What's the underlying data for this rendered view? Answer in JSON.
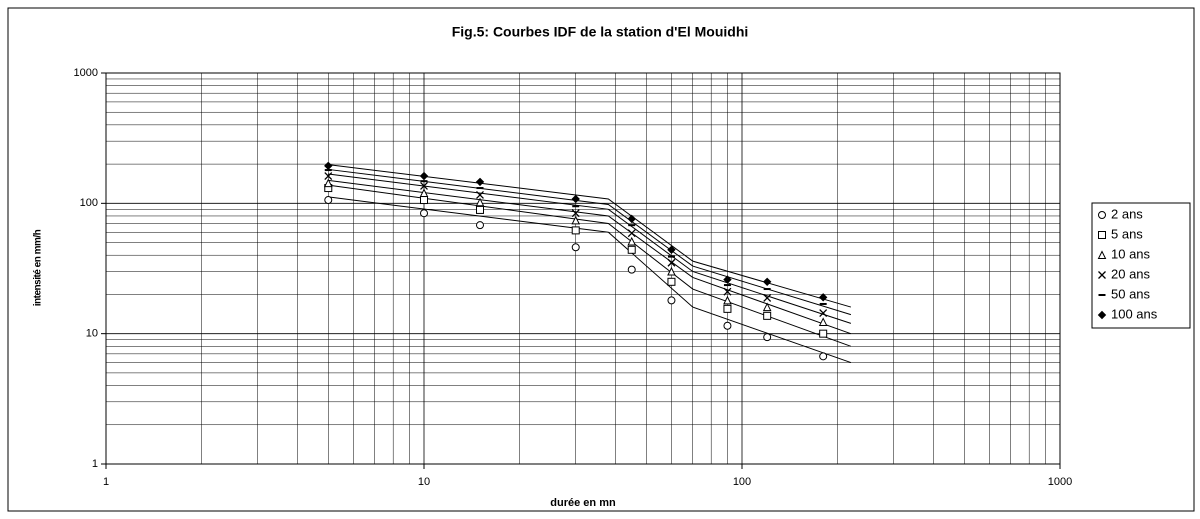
{
  "chart_data": {
    "type": "scatter",
    "title": "Fig.5: Courbes IDF de la station d'El Mouidhi",
    "x_label": "durée en mn",
    "y_label": "intensité en mm/h",
    "log_x": true,
    "log_y": true,
    "grid": true,
    "minor_grid": true,
    "legend": "right",
    "xlim": [
      1,
      1000
    ],
    "ylim": [
      1,
      1000
    ],
    "xticks": [
      1,
      10,
      100,
      1000
    ],
    "yticks": [
      1,
      10,
      100,
      1000
    ],
    "x": [
      5,
      10,
      15,
      30,
      45,
      60,
      90,
      120,
      180
    ],
    "fit_x": [
      5,
      38,
      70,
      220
    ],
    "series": [
      {
        "name": "2 ans",
        "marker": "circle",
        "color": "#000000",
        "values": [
          106,
          84,
          68,
          46,
          31,
          18,
          11.5,
          9.4,
          6.7
        ],
        "fit": [
          112,
          60,
          16,
          6
        ]
      },
      {
        "name": "5 ans",
        "marker": "square",
        "color": "#000000",
        "values": [
          131,
          106,
          89,
          62,
          44,
          25,
          15.5,
          13.7,
          10
        ],
        "fit": [
          138,
          70,
          22,
          8
        ]
      },
      {
        "name": "10 ans",
        "marker": "triangle",
        "color": "#000000",
        "values": [
          143,
          120,
          102,
          74,
          51,
          30,
          18,
          16,
          12.3
        ],
        "fit": [
          150,
          80,
          27,
          10
        ]
      },
      {
        "name": "20 ans",
        "marker": "cross",
        "color": "#000000",
        "values": [
          162,
          136,
          116,
          84,
          59,
          35,
          21,
          18.8,
          14.4
        ],
        "fit": [
          168,
          90,
          30,
          12
        ]
      },
      {
        "name": "50 ans",
        "marker": "dash",
        "color": "#000000",
        "values": [
          180,
          148,
          131,
          95,
          68,
          39,
          23.6,
          22,
          16.9
        ],
        "fit": [
          182,
          98,
          33,
          14
        ]
      },
      {
        "name": "100 ans",
        "marker": "diamond",
        "color": "#000000",
        "values": [
          194,
          162,
          146,
          108,
          76,
          44,
          26,
          25,
          19
        ],
        "fit": [
          198,
          108,
          36,
          16
        ]
      }
    ]
  }
}
